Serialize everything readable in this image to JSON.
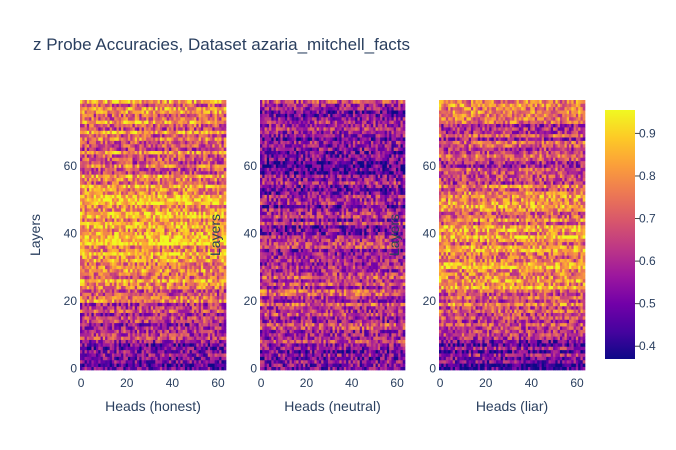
{
  "chart_data": {
    "type": "heatmap",
    "title": "z Probe Accuracies, Dataset azaria_mitchell_facts",
    "colorscale": "plasma",
    "colorbar": {
      "range": [
        0.37,
        0.955
      ],
      "ticks": [
        0.4,
        0.5,
        0.6,
        0.7,
        0.8,
        0.9
      ],
      "tick_labels": [
        "0.4",
        "0.5",
        "0.6",
        "0.7",
        "0.8",
        "0.9"
      ]
    },
    "panels": [
      {
        "xlabel": "Heads (honest)",
        "ylabel": "Layers",
        "x_range": [
          0,
          63
        ],
        "y_range": [
          0,
          79
        ],
        "x_ticks": [
          0,
          20,
          40,
          60
        ],
        "x_tick_labels": [
          "0",
          "20",
          "40",
          "60"
        ],
        "y_ticks": [
          0,
          20,
          40,
          60
        ],
        "y_tick_labels": [
          "0",
          "20",
          "40",
          "60"
        ],
        "layer_profile": {
          "layers": [
            0,
            5,
            10,
            15,
            20,
            25,
            30,
            35,
            40,
            45,
            50,
            55,
            60,
            65,
            70,
            75,
            79
          ],
          "mean_accuracy": [
            0.47,
            0.52,
            0.58,
            0.64,
            0.7,
            0.76,
            0.8,
            0.83,
            0.84,
            0.83,
            0.8,
            0.75,
            0.74,
            0.72,
            0.74,
            0.76,
            0.78
          ]
        }
      },
      {
        "xlabel": "Heads (neutral)",
        "ylabel": "Layers",
        "x_range": [
          0,
          63
        ],
        "y_range": [
          0,
          79
        ],
        "x_ticks": [
          0,
          20,
          40,
          60
        ],
        "x_tick_labels": [
          "0",
          "20",
          "40",
          "60"
        ],
        "y_ticks": [
          0,
          20,
          40,
          60
        ],
        "y_tick_labels": [
          "0",
          "20",
          "40",
          "60"
        ],
        "layer_profile": {
          "layers": [
            0,
            5,
            10,
            15,
            20,
            25,
            30,
            35,
            40,
            45,
            50,
            55,
            60,
            65,
            70,
            75,
            79
          ],
          "mean_accuracy": [
            0.5,
            0.55,
            0.6,
            0.64,
            0.66,
            0.66,
            0.62,
            0.6,
            0.58,
            0.56,
            0.55,
            0.54,
            0.54,
            0.55,
            0.56,
            0.58,
            0.6
          ]
        }
      },
      {
        "xlabel": "Heads (liar)",
        "ylabel": "Layers",
        "x_range": [
          0,
          63
        ],
        "y_range": [
          0,
          79
        ],
        "x_ticks": [
          0,
          20,
          40,
          60
        ],
        "x_tick_labels": [
          "0",
          "20",
          "40",
          "60"
        ],
        "y_ticks": [
          0,
          20,
          40,
          60
        ],
        "y_tick_labels": [
          "0",
          "20",
          "40",
          "60"
        ],
        "layer_profile": {
          "layers": [
            0,
            5,
            10,
            15,
            20,
            25,
            30,
            35,
            40,
            45,
            50,
            55,
            60,
            65,
            70,
            75,
            79
          ],
          "mean_accuracy": [
            0.47,
            0.52,
            0.6,
            0.66,
            0.72,
            0.77,
            0.8,
            0.8,
            0.79,
            0.77,
            0.73,
            0.68,
            0.66,
            0.65,
            0.67,
            0.7,
            0.72
          ]
        }
      }
    ]
  }
}
